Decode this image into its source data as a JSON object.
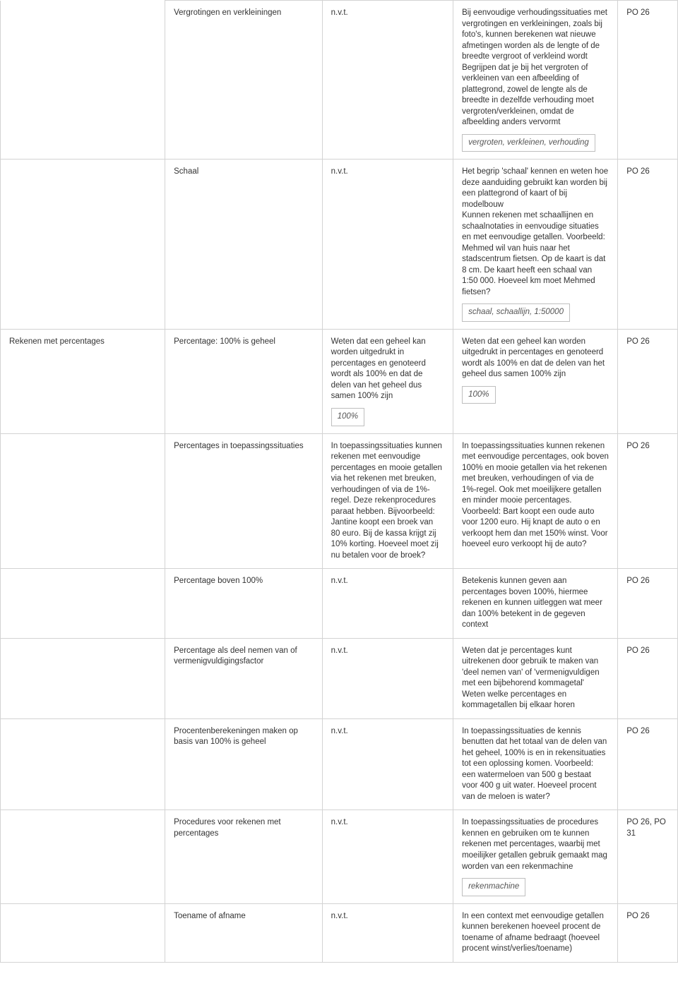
{
  "rows": [
    {
      "section": "",
      "topic": "Vergrotingen en verkleiningen",
      "col3": {
        "paras": [
          "n.v.t."
        ],
        "tag": null
      },
      "col4": {
        "paras": [
          "Bij eenvoudige verhoudingssituaties met vergrotingen en verkleiningen, zoals bij foto's, kunnen berekenen wat nieuwe afmetingen worden als de lengte of de breedte vergroot of verkleind wordt",
          "Begrijpen dat je bij het vergroten of verkleinen van een afbeelding of plattegrond, zowel de lengte als de breedte in dezelfde verhouding moet vergroten/verkleinen, omdat de afbeelding anders vervormt"
        ],
        "tag": "vergroten, verkleinen, verhouding"
      },
      "code": "PO 26",
      "sectionContinues": true
    },
    {
      "section": "",
      "topic": "Schaal",
      "col3": {
        "paras": [
          "n.v.t."
        ],
        "tag": null
      },
      "col4": {
        "paras": [
          "Het begrip 'schaal' kennen en weten hoe deze aanduiding gebruikt kan worden bij een plattegrond of kaart of bij modelbouw",
          "Kunnen rekenen met schaallijnen en schaalnotaties in eenvoudige situaties en met eenvoudige getallen. Voorbeeld: Mehmed wil van huis naar het stadscentrum fietsen. Op de kaart is dat 8 cm. De kaart heeft een schaal van 1:50 000. Hoeveel km moet Mehmed fietsen?"
        ],
        "tag": "schaal, schaallijn, 1:50000"
      },
      "code": "PO 26",
      "sectionContinues": true
    },
    {
      "section": "Rekenen met percentages",
      "topic": "Percentage: 100% is geheel",
      "col3": {
        "paras": [
          "Weten dat een geheel kan worden uitgedrukt in percentages en genoteerd wordt als 100% en dat de delen van het geheel dus samen 100% zijn"
        ],
        "tag": "100%"
      },
      "col4": {
        "paras": [
          "Weten dat een geheel kan worden uitgedrukt in percentages en genoteerd wordt als 100% en dat de delen van het geheel dus samen 100% zijn"
        ],
        "tag": "100%"
      },
      "code": "PO 26"
    },
    {
      "section": "",
      "topic": "Percentages in toepassingssituaties",
      "col3": {
        "paras": [
          "In toepassingssituaties kunnen rekenen met eenvoudige percentages en mooie getallen via het rekenen met breuken, verhoudingen of via de 1%-regel. Deze rekenprocedures paraat hebben. Bijvoorbeeld: Jantine koopt een broek van 80 euro. Bij de kassa krijgt zij 10% korting. Hoeveel moet zij nu betalen voor de broek?"
        ],
        "tag": null
      },
      "col4": {
        "paras": [
          "In toepassingssituaties kunnen rekenen met eenvoudige percentages, ook boven 100% en mooie getallen via het rekenen met breuken, verhoudingen of via de 1%-regel. Ook met moeilijkere getallen en minder mooie percentages.",
          "Voorbeeld: Bart koopt een oude auto voor 1200 euro. Hij knapt de auto o en verkoopt hem dan met 150% winst. Voor hoeveel euro verkoopt hij de auto?"
        ],
        "tag": null
      },
      "code": "PO 26",
      "sectionContinues": true
    },
    {
      "section": "",
      "topic": "Percentage boven 100%",
      "col3": {
        "paras": [
          "n.v.t."
        ],
        "tag": null
      },
      "col4": {
        "paras": [
          "Betekenis kunnen geven aan percentages boven 100%, hiermee rekenen en kunnen uitleggen wat meer dan 100% betekent in de gegeven context"
        ],
        "tag": null
      },
      "code": "PO 26",
      "sectionContinues": true
    },
    {
      "section": "",
      "topic": "Percentage als deel nemen van of vermenigvuldigingsfactor",
      "col3": {
        "paras": [
          "n.v.t."
        ],
        "tag": null
      },
      "col4": {
        "paras": [
          "Weten dat je percentages kunt uitrekenen door gebruik te maken van 'deel nemen van' of 'vermenigvuldigen met een bijbehorend kommagetal'",
          "Weten welke percentages en kommagetallen bij elkaar horen"
        ],
        "tag": null
      },
      "code": "PO 26",
      "sectionContinues": true
    },
    {
      "section": "",
      "topic": "Procentenberekeningen maken op basis van 100% is geheel",
      "col3": {
        "paras": [
          "n.v.t."
        ],
        "tag": null
      },
      "col4": {
        "paras": [
          "In toepassingssituaties de kennis benutten dat het totaal van de delen van het geheel, 100% is en in rekensituaties tot een oplossing komen. Voorbeeld: een watermeloen van 500 g bestaat voor 400 g uit water. Hoeveel procent van de meloen is water?"
        ],
        "tag": null
      },
      "code": "PO 26",
      "sectionContinues": true
    },
    {
      "section": "",
      "topic": "Procedures voor rekenen met percentages",
      "col3": {
        "paras": [
          "n.v.t."
        ],
        "tag": null
      },
      "col4": {
        "paras": [
          "In toepassingssituaties de procedures kennen en gebruiken om te kunnen rekenen met percentages, waarbij met moeilijker getallen gebruik gemaakt mag worden van een rekenmachine"
        ],
        "tag": "rekenmachine"
      },
      "code": "PO 26, PO 31",
      "sectionContinues": true
    },
    {
      "section": "",
      "topic": "Toename of afname",
      "col3": {
        "paras": [
          "n.v.t."
        ],
        "tag": null
      },
      "col4": {
        "paras": [
          "In een context met eenvoudige getallen kunnen berekenen hoeveel procent de toename of afname bedraagt (hoeveel procent winst/verlies/toename)"
        ],
        "tag": null
      },
      "code": "PO 26",
      "sectionContinues": true
    }
  ]
}
